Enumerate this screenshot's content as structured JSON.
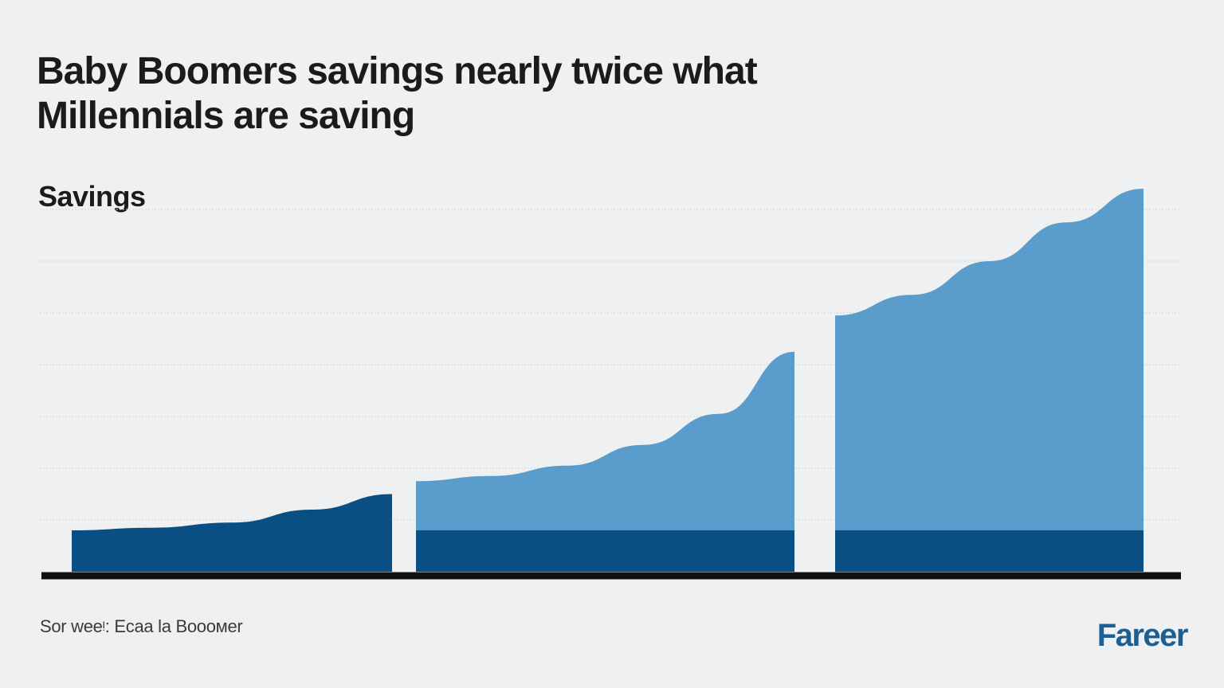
{
  "chart_data": {
    "type": "area",
    "title": "Baby Boomers savings nearly twice what Millennials are saving",
    "xlabel": "",
    "ylabel": "Savings",
    "ylim": [
      0,
      7
    ],
    "grid": true,
    "legend": "none",
    "colors": {
      "dark": "#0a4f84",
      "light": "#5a9ccb",
      "axis": "#111111",
      "grid": "#c9d6e2"
    },
    "panels": [
      {
        "layers": [
          {
            "color": "dark",
            "x": [
              0,
              0.25,
              0.5,
              0.75,
              1
            ],
            "values": [
              0.8,
              0.85,
              0.95,
              1.2,
              1.5
            ]
          }
        ]
      },
      {
        "layers": [
          {
            "color": "dark",
            "x": [
              0,
              1
            ],
            "values": [
              0.8,
              0.8
            ]
          },
          {
            "color": "light",
            "x": [
              0,
              0.2,
              0.4,
              0.6,
              0.8,
              1
            ],
            "values": [
              1.75,
              1.85,
              2.05,
              2.45,
              3.05,
              4.25
            ]
          }
        ]
      },
      {
        "layers": [
          {
            "color": "dark",
            "x": [
              0,
              1
            ],
            "values": [
              0.8,
              0.8
            ]
          },
          {
            "color": "light",
            "x": [
              0,
              0.25,
              0.5,
              0.75,
              1
            ],
            "values": [
              4.95,
              5.35,
              6.0,
              6.75,
              7.4
            ]
          }
        ]
      }
    ]
  },
  "source": "Sor weeᵎ: Ecaa la Boooмer",
  "logo": "Fareer"
}
